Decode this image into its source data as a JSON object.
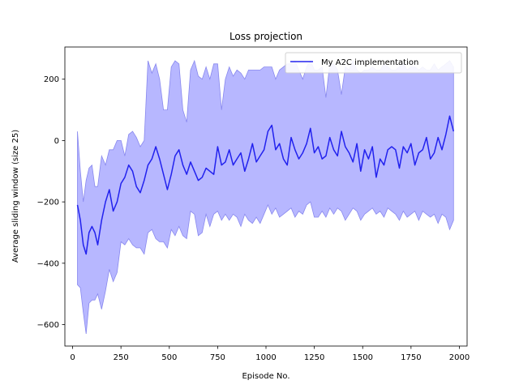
{
  "chart_data": {
    "type": "line",
    "title": "Loss projection",
    "xlabel": "Episode No.",
    "ylabel": "Average sliding window (size 25)",
    "xlim": [
      -40,
      2040
    ],
    "ylim": [
      -670,
      305
    ],
    "xticks": [
      0,
      250,
      500,
      750,
      1000,
      1250,
      1500,
      1750,
      2000
    ],
    "xtick_labels": [
      "0",
      "250",
      "500",
      "750",
      "1000",
      "1250",
      "1500",
      "1750",
      "2000"
    ],
    "yticks": [
      -600,
      -400,
      -200,
      0,
      200
    ],
    "ytick_labels": [
      "−600",
      "−400",
      "−200",
      "0",
      "200"
    ],
    "legend": {
      "location": "upper right",
      "entries": [
        "My A2C implementation"
      ]
    },
    "series": [
      {
        "name": "My A2C implementation",
        "color": "#2222ee",
        "band_color": "#b3b3ff",
        "band_edge_color": "#8888ee",
        "x": [
          25,
          40,
          55,
          70,
          85,
          100,
          115,
          130,
          150,
          170,
          190,
          210,
          230,
          250,
          270,
          290,
          310,
          330,
          350,
          370,
          390,
          410,
          430,
          450,
          470,
          490,
          510,
          530,
          550,
          570,
          590,
          610,
          630,
          650,
          670,
          690,
          710,
          730,
          750,
          770,
          790,
          810,
          830,
          850,
          870,
          890,
          910,
          930,
          950,
          970,
          990,
          1010,
          1030,
          1050,
          1070,
          1090,
          1110,
          1130,
          1150,
          1170,
          1190,
          1210,
          1230,
          1250,
          1270,
          1290,
          1310,
          1330,
          1350,
          1370,
          1390,
          1410,
          1430,
          1450,
          1470,
          1490,
          1510,
          1530,
          1550,
          1570,
          1590,
          1610,
          1630,
          1650,
          1670,
          1690,
          1710,
          1730,
          1750,
          1770,
          1790,
          1810,
          1830,
          1850,
          1870,
          1890,
          1910,
          1930,
          1950,
          1970
        ],
        "y": [
          -210,
          -260,
          -340,
          -370,
          -300,
          -280,
          -300,
          -340,
          -260,
          -200,
          -160,
          -230,
          -200,
          -140,
          -120,
          -80,
          -100,
          -150,
          -170,
          -130,
          -80,
          -60,
          -20,
          -60,
          -110,
          -160,
          -110,
          -50,
          -30,
          -80,
          -110,
          -70,
          -100,
          -130,
          -120,
          -90,
          -100,
          -110,
          -20,
          -80,
          -70,
          -30,
          -80,
          -60,
          -40,
          -100,
          -60,
          -10,
          -70,
          -50,
          -30,
          30,
          50,
          -30,
          -10,
          -60,
          -80,
          10,
          -30,
          -60,
          -40,
          -10,
          40,
          -40,
          -20,
          -60,
          -50,
          10,
          -30,
          -50,
          30,
          -20,
          -40,
          -70,
          -10,
          -100,
          -30,
          -60,
          -20,
          -120,
          -60,
          -80,
          -30,
          -20,
          -30,
          -90,
          -20,
          -40,
          -10,
          -80,
          -40,
          -30,
          10,
          -60,
          -40,
          10,
          -30,
          20,
          80,
          30
        ],
        "upper": [
          30,
          -100,
          -200,
          -130,
          -90,
          -80,
          -150,
          -150,
          -50,
          -80,
          -30,
          -30,
          0,
          0,
          -50,
          20,
          30,
          10,
          -20,
          0,
          260,
          220,
          250,
          200,
          100,
          100,
          240,
          260,
          250,
          100,
          60,
          230,
          260,
          210,
          200,
          240,
          200,
          250,
          250,
          100,
          200,
          240,
          210,
          230,
          220,
          200,
          230,
          230,
          230,
          230,
          240,
          240,
          240,
          200,
          230,
          240,
          250,
          250,
          260,
          230,
          200,
          240,
          260,
          230,
          230,
          240,
          140,
          250,
          250,
          230,
          150,
          240,
          230,
          260,
          230,
          220,
          230,
          230,
          240,
          230,
          230,
          250,
          240,
          230,
          230,
          240,
          250,
          230,
          240,
          240,
          230,
          240,
          230,
          230,
          250,
          230,
          240,
          250,
          260,
          240
        ],
        "lower": [
          -470,
          -480,
          -560,
          -630,
          -530,
          -520,
          -520,
          -500,
          -550,
          -490,
          -420,
          -460,
          -430,
          -330,
          -340,
          -320,
          -340,
          -350,
          -350,
          -370,
          -300,
          -290,
          -320,
          -330,
          -330,
          -350,
          -290,
          -310,
          -280,
          -310,
          -320,
          -230,
          -240,
          -310,
          -300,
          -240,
          -280,
          -240,
          -230,
          -260,
          -240,
          -260,
          -240,
          -250,
          -280,
          -240,
          -260,
          -270,
          -250,
          -270,
          -240,
          -210,
          -240,
          -220,
          -250,
          -240,
          -230,
          -220,
          -250,
          -230,
          -240,
          -210,
          -200,
          -250,
          -250,
          -230,
          -250,
          -220,
          -240,
          -220,
          -230,
          -260,
          -240,
          -220,
          -230,
          -260,
          -240,
          -230,
          -220,
          -240,
          -230,
          -250,
          -220,
          -230,
          -240,
          -260,
          -230,
          -250,
          -240,
          -230,
          -260,
          -230,
          -240,
          -250,
          -240,
          -270,
          -240,
          -250,
          -290,
          -260
        ]
      }
    ]
  }
}
